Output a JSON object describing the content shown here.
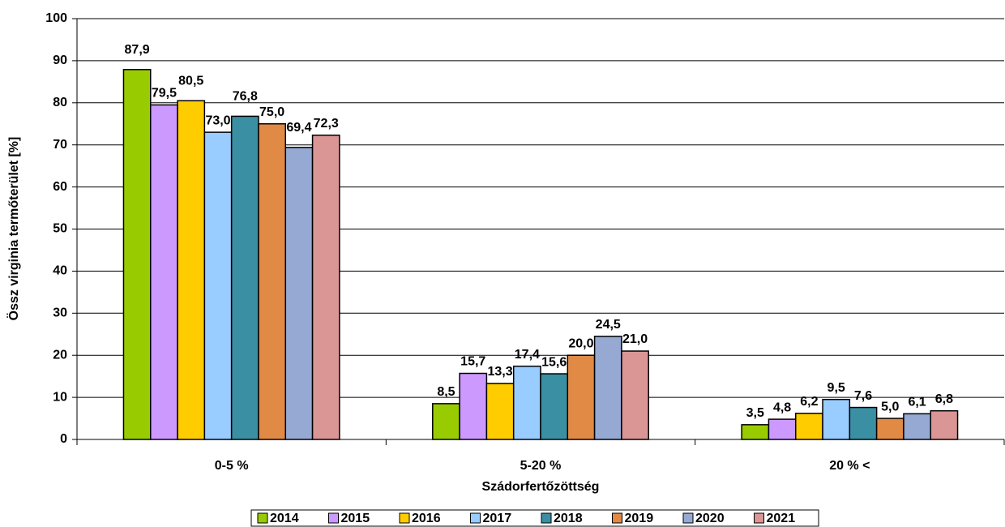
{
  "chart_data": {
    "type": "bar",
    "categories": [
      "0-5 %",
      "5-20 %",
      "20 % <"
    ],
    "series": [
      {
        "name": "2014",
        "color": "#99cc00",
        "values": [
          87.9,
          8.5,
          3.5
        ],
        "value_labels": [
          "87,9",
          "8,5",
          "3,5"
        ]
      },
      {
        "name": "2015",
        "color": "#cc99ff",
        "values": [
          79.5,
          15.7,
          4.8
        ],
        "value_labels": [
          "79,5",
          "15,7",
          "4,8"
        ]
      },
      {
        "name": "2016",
        "color": "#ffcc00",
        "values": [
          80.5,
          13.3,
          6.2
        ],
        "value_labels": [
          "80,5",
          "13,3",
          "6,2"
        ]
      },
      {
        "name": "2017",
        "color": "#99ccff",
        "values": [
          73.0,
          17.4,
          9.5
        ],
        "value_labels": [
          "73,0",
          "17,4",
          "9,5"
        ]
      },
      {
        "name": "2018",
        "color": "#3a8fa3",
        "values": [
          76.8,
          15.6,
          7.6
        ],
        "value_labels": [
          "76,8",
          "15,6",
          "7,6"
        ]
      },
      {
        "name": "2019",
        "color": "#e08a45",
        "values": [
          75.0,
          20.0,
          5.0
        ],
        "value_labels": [
          "75,0",
          "20,0",
          "5,0"
        ]
      },
      {
        "name": "2020",
        "color": "#95a9d3",
        "values": [
          69.4,
          24.5,
          6.1
        ],
        "value_labels": [
          "69,4",
          "24,5",
          "6,1"
        ]
      },
      {
        "name": "2021",
        "color": "#d99694",
        "values": [
          72.3,
          21.0,
          6.8
        ],
        "value_labels": [
          "72,3",
          "21,0",
          "6,8"
        ]
      }
    ],
    "ylabel": "Össz virginia termőterület [%]",
    "xlabel": "Szádorfertőzöttség",
    "ylim": [
      0,
      100
    ],
    "yticks": [
      0,
      10,
      20,
      30,
      40,
      50,
      60,
      70,
      80,
      90,
      100
    ],
    "grid": true,
    "legend": "bottom"
  }
}
